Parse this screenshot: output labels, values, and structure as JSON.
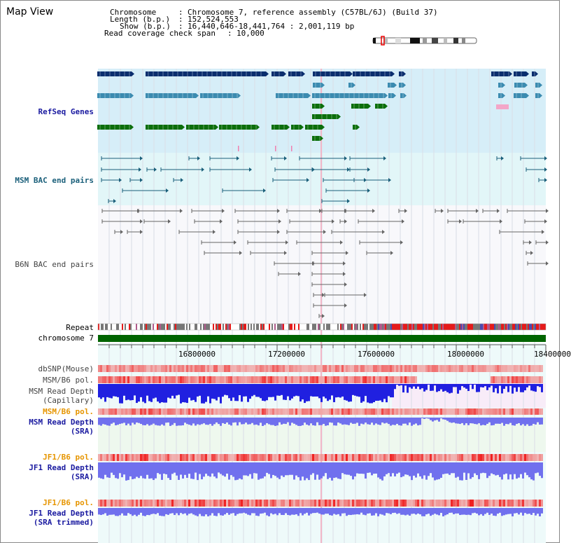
{
  "title": "Map View",
  "header": {
    "chromosome_label": "Chromosome",
    "chromosome_value": "Chromosome 7, reference assembly (C57BL/6J) (Build 37)",
    "length_label": "Length (b.p.)",
    "length_value": "152,524,553",
    "show_label": "Show (b.p.)",
    "show_value": "16,440,646-18,441,764 : 2,001,119 bp",
    "coverage_label": "Read coverage check span",
    "coverage_value": "10,000"
  },
  "tracks": {
    "refseq": "RefSeq Genes",
    "msm_bac": "MSM BAC end pairs",
    "b6n_bac": "B6N BAC end pairs",
    "repeat": "Repeat",
    "chromosome": "chromosome 7",
    "dbsnp": "dbSNP(Mouse)",
    "msm_b6_pol_1": "MSM/B6 pol.",
    "msm_depth_cap_1": "MSM Read Depth",
    "msm_depth_cap_2": "(Capillary)",
    "msm_b6_pol_2": "MSM/B6 pol.",
    "msm_depth_sra_1": "MSM Read Depth",
    "msm_depth_sra_2": "(SRA)",
    "jf1_b6_pol_1": "JF1/B6 pol.",
    "jf1_depth_sra_1": "JF1 Read Depth",
    "jf1_depth_sra_2": "(SRA)",
    "jf1_b6_pol_2": "JF1/B6 pol.",
    "jf1_depth_trim_1": "JF1 Read Depth",
    "jf1_depth_trim_2": "(SRA trimmed)"
  },
  "axis": {
    "ticks": [
      "16800000",
      "17200000",
      "17600000",
      "18000000",
      "18400000"
    ]
  },
  "colors": {
    "refseq_dark": "#0a2e6e",
    "refseq_mid": "#3b8bb0",
    "refseq_green": "#0b6e0b",
    "refseq_pink": "#f3a6c8",
    "msm_bac": "#1a5f7a",
    "b6n_bac": "#666666",
    "chromosome_bar": "#006400",
    "pol_red": "#e53030",
    "depth_blue": "#2020e0",
    "depth_violet": "#7070ee"
  }
}
